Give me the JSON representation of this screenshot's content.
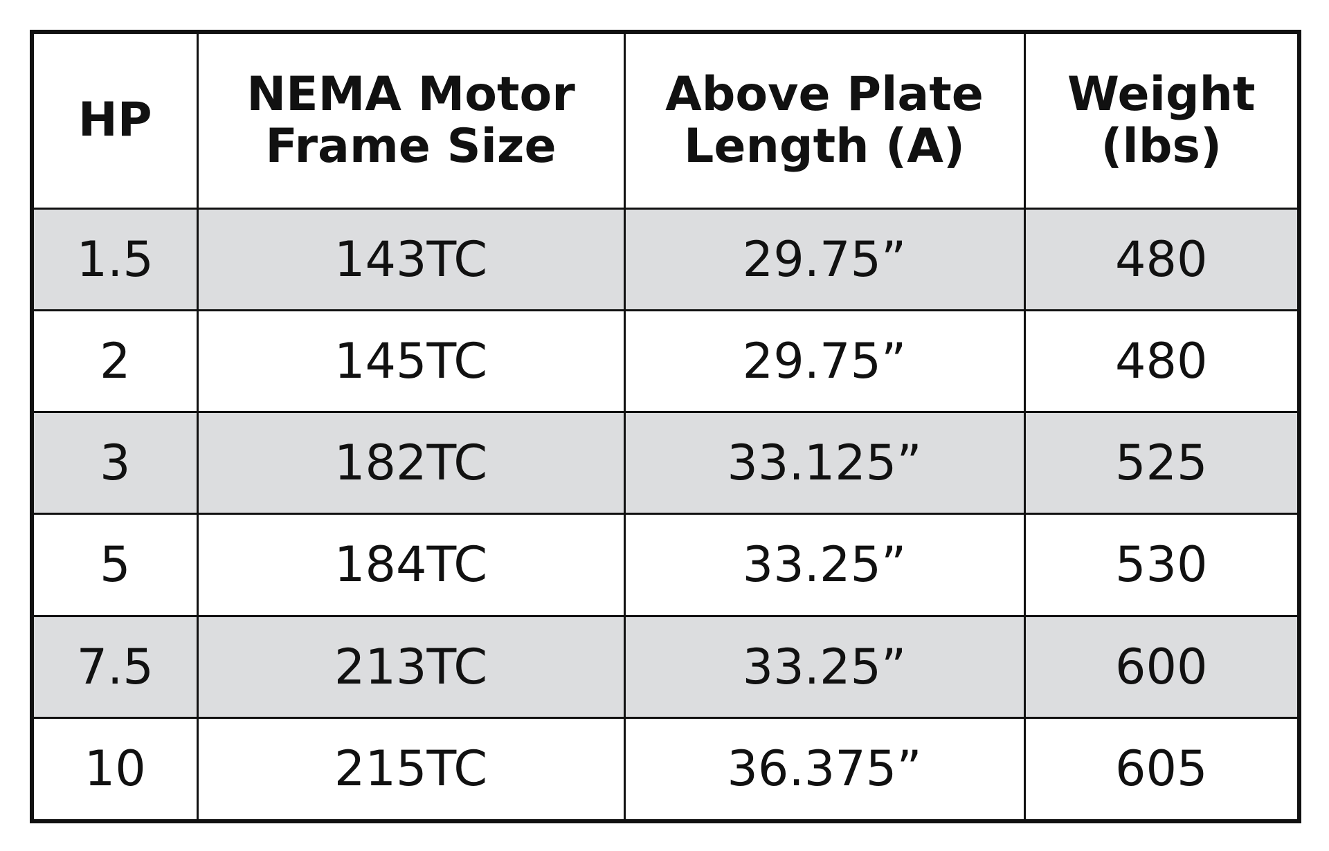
{
  "table": {
    "header": [
      "HP",
      "NEMA Motor Frame Size",
      "Above Plate Length (A)",
      "Weight (lbs)"
    ],
    "rows": [
      [
        "1.5",
        "143TC",
        "29.75”",
        "480"
      ],
      [
        "2",
        "145TC",
        "29.75”",
        "480"
      ],
      [
        "3",
        "182TC",
        "33.125”",
        "525"
      ],
      [
        "5",
        "184TC",
        "33.25”",
        "530"
      ],
      [
        "7.5",
        "213TC",
        "33.25”",
        "600"
      ],
      [
        "10",
        "215TC",
        "36.375”",
        "605"
      ]
    ]
  }
}
